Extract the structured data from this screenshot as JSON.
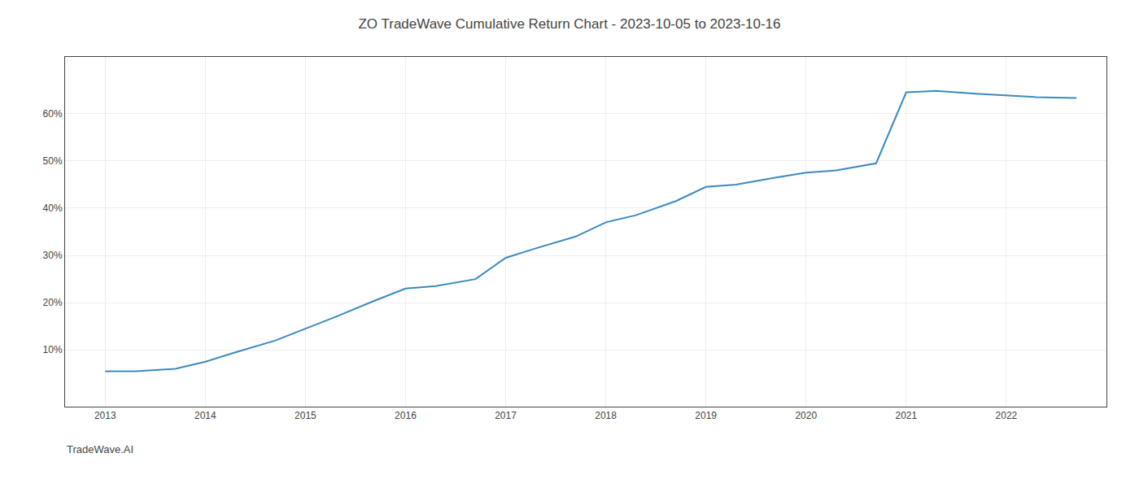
{
  "chart_data": {
    "type": "line",
    "title": "ZO TradeWave Cumulative Return Chart - 2023-10-05 to 2023-10-16",
    "annotations": [
      "TradeWave.AI"
    ],
    "x": [
      2013.0,
      2013.3,
      2013.7,
      2014.0,
      2014.3,
      2014.7,
      2015.0,
      2015.3,
      2015.7,
      2016.0,
      2016.3,
      2016.7,
      2017.0,
      2017.3,
      2017.7,
      2018.0,
      2018.3,
      2018.7,
      2019.0,
      2019.3,
      2019.7,
      2020.0,
      2020.3,
      2020.7,
      2021.0,
      2021.3,
      2021.7,
      2022.0,
      2022.3,
      2022.7
    ],
    "values": [
      5.5,
      5.5,
      6.0,
      7.5,
      9.5,
      12.0,
      14.5,
      17.0,
      20.5,
      23.0,
      23.5,
      25.0,
      29.5,
      31.5,
      34.0,
      37.0,
      38.5,
      41.5,
      44.5,
      45.0,
      46.5,
      47.5,
      48.0,
      49.5,
      64.5,
      64.8,
      64.2,
      63.8,
      63.5,
      63.3
    ],
    "color": "#3a8abf",
    "xlim": [
      2012.6,
      2023.0
    ],
    "ylim": [
      -2,
      72
    ],
    "xticks": [
      2013,
      2014,
      2015,
      2016,
      2017,
      2018,
      2019,
      2020,
      2021,
      2022
    ],
    "yticks": [
      {
        "value": 10,
        "label": "10%"
      },
      {
        "value": 20,
        "label": "20%"
      },
      {
        "value": 30,
        "label": "30%"
      },
      {
        "value": 40,
        "label": "40%"
      },
      {
        "value": 50,
        "label": "50%"
      },
      {
        "value": 60,
        "label": "60%"
      }
    ],
    "grid": true
  }
}
